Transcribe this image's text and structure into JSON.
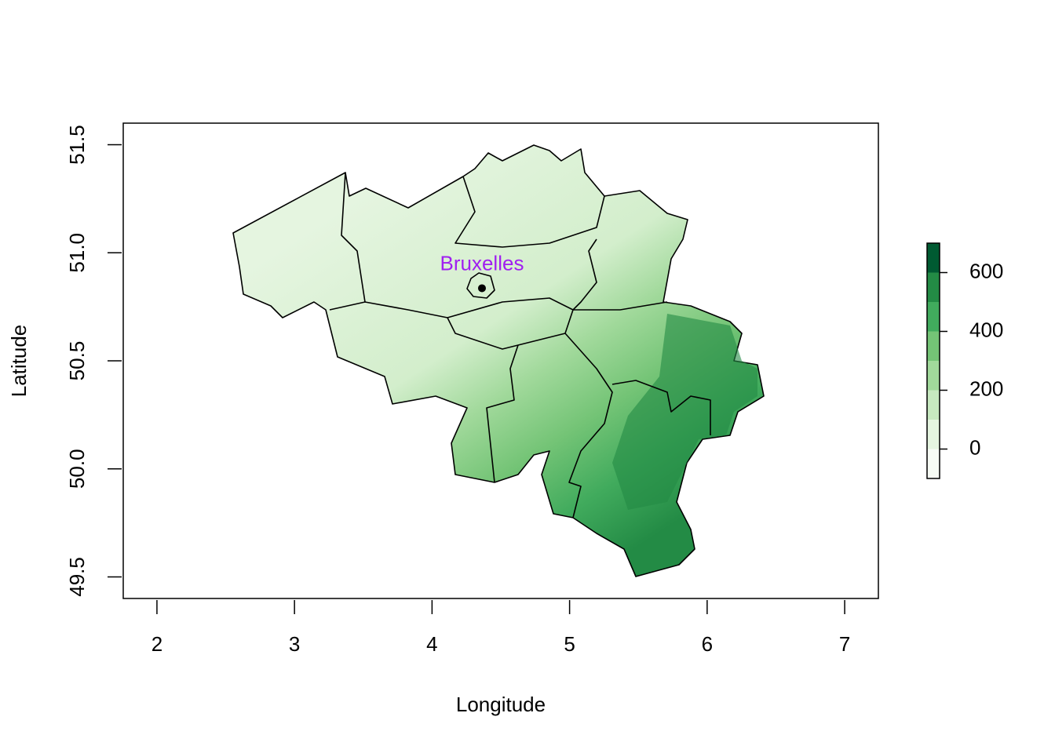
{
  "chart_data": {
    "type": "map",
    "xlabel": "Longitude",
    "ylabel": "Latitude",
    "xlim": [
      1.755,
      7.245
    ],
    "ylim": [
      49.4,
      51.6
    ],
    "xticks": [
      2,
      3,
      4,
      5,
      6,
      7
    ],
    "yticks": [
      49.5,
      {
        "value": 50,
        "label": "50.0"
      },
      50.5,
      {
        "value": 51,
        "label": "51.0"
      },
      51.5
    ],
    "points": [
      {
        "name": "Bruxelles",
        "x": 4.363,
        "y": 50.836,
        "color": "#a020f0"
      }
    ],
    "colorbar": {
      "lim": [
        -100,
        700
      ],
      "breaks": [
        -100,
        0,
        100,
        200,
        300,
        400,
        500,
        600,
        700
      ],
      "colors": [
        "#f7fcf5",
        "#e5f5e0",
        "#c7e9c0",
        "#a1d99b",
        "#74c476",
        "#41ab5d",
        "#238b45",
        "#005a32"
      ],
      "ticks": [
        0,
        200,
        400,
        600
      ]
    }
  }
}
